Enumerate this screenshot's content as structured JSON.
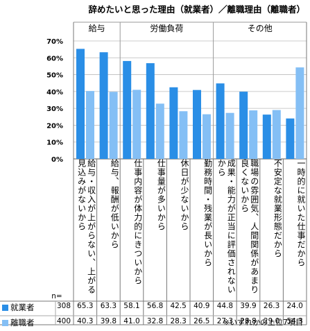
{
  "title": "辞めたいと思った理由（就業者）／離職理由（離職者）",
  "note": "※いずれかの上位7項目",
  "n_label": "n=",
  "colors": {
    "series1": "#2a8ee6",
    "series2": "#84bff5",
    "grid": "#bbbbbb"
  },
  "chart_data": {
    "type": "bar",
    "ylim": [
      0,
      70
    ],
    "yticks": [
      "0%",
      "10%",
      "20%",
      "30%",
      "40%",
      "50%",
      "60%",
      "70%"
    ],
    "groups": [
      {
        "label": "給与",
        "count": 2
      },
      {
        "label": "労働負荷",
        "count": 4
      },
      {
        "label": "その他",
        "count": 4
      }
    ],
    "categories": [
      "給与・収入が上がらない、上がる見込みがないから",
      "給与、報酬が低いから",
      "仕事内容が体力的にきついから",
      "仕事量が多いから",
      "休日が少ないから",
      "勤務時間・残業が長いから",
      "成果・能力が正当に評価されないから",
      "職場の雰囲気、人間関係があまり良くないから",
      "不安定な就業形態だから",
      "一時的に就いた仕事だから"
    ],
    "series": [
      {
        "name": "就業者",
        "n": "308",
        "values": [
          65.3,
          63.3,
          58.1,
          56.8,
          42.5,
          40.9,
          44.8,
          39.9,
          26.3,
          24.0
        ]
      },
      {
        "name": "離職者",
        "n": "400",
        "values": [
          40.3,
          39.8,
          41.0,
          32.8,
          28.3,
          26.5,
          27.3,
          28.8,
          29.0,
          54.3
        ]
      }
    ]
  }
}
